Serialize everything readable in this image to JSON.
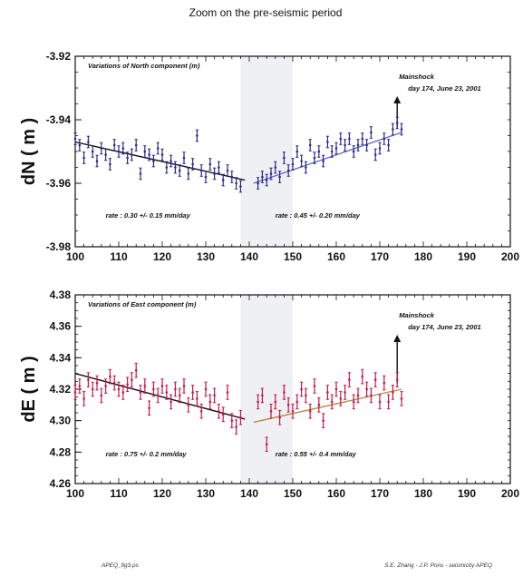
{
  "figure": {
    "subtitle": "Zoom on the pre-seismic period",
    "footer_left": "APEQ_fig3.ps",
    "footer_right": "S.E. Zhang - J.P. Pons - seismicity APEQ"
  },
  "chart_data": [
    {
      "type": "scatter",
      "panel_title": "Variations of North component (m)",
      "ylabel": "dN ( m )",
      "xlim": [
        100,
        200
      ],
      "ylim": [
        -3.98,
        -3.92
      ],
      "xticks": [
        100,
        110,
        120,
        130,
        140,
        150,
        160,
        170,
        180,
        190,
        200
      ],
      "yticks": [
        -3.92,
        -3.94,
        -3.96,
        -3.98
      ],
      "ytick_labels": [
        "-3.92",
        "-3.94",
        "-3.96",
        "-3.98"
      ],
      "shaded_x": [
        138,
        150
      ],
      "colors": {
        "points": "#2a2a8c",
        "trend_pre": "#111111",
        "trend_post": "#6a6ad0"
      },
      "mainshock": {
        "label": "Mainshock",
        "detail": "day 174, June 23, 2001",
        "x": 174
      },
      "rate_pre": "rate : 0.30 +/- 0.15 mm/day",
      "rate_post": "rate : 0.45 +/- 0.20 mm/day",
      "trend_pre": [
        [
          100,
          -3.947
        ],
        [
          139,
          -3.959
        ]
      ],
      "trend_post": [
        [
          141,
          -3.96
        ],
        [
          175,
          -3.944
        ]
      ],
      "x": [
        100,
        101,
        102,
        103,
        104,
        105,
        106,
        107,
        108,
        109,
        110,
        111,
        112,
        113,
        114,
        115,
        116,
        117,
        118,
        119,
        120,
        121,
        122,
        123,
        124,
        125,
        126,
        127,
        128,
        129,
        130,
        131,
        132,
        133,
        134,
        135,
        136,
        137,
        138,
        142,
        143,
        144,
        145,
        146,
        147,
        148,
        149,
        150,
        151,
        152,
        153,
        154,
        155,
        156,
        157,
        158,
        159,
        160,
        161,
        162,
        163,
        164,
        165,
        166,
        167,
        168,
        169,
        170,
        171,
        172,
        173,
        174,
        175
      ],
      "y": [
        -3.946,
        -3.948,
        -3.952,
        -3.947,
        -3.95,
        -3.953,
        -3.949,
        -3.951,
        -3.954,
        -3.948,
        -3.95,
        -3.949,
        -3.952,
        -3.951,
        -3.948,
        -3.957,
        -3.95,
        -3.951,
        -3.953,
        -3.949,
        -3.951,
        -3.955,
        -3.953,
        -3.955,
        -3.956,
        -3.952,
        -3.957,
        -3.954,
        -3.945,
        -3.956,
        -3.958,
        -3.954,
        -3.957,
        -3.955,
        -3.959,
        -3.956,
        -3.958,
        -3.96,
        -3.961,
        -3.96,
        -3.958,
        -3.959,
        -3.957,
        -3.955,
        -3.958,
        -3.952,
        -3.956,
        -3.954,
        -3.95,
        -3.953,
        -3.955,
        -3.948,
        -3.952,
        -3.95,
        -3.953,
        -3.947,
        -3.95,
        -3.949,
        -3.946,
        -3.948,
        -3.946,
        -3.95,
        -3.948,
        -3.946,
        -3.948,
        -3.944,
        -3.951,
        -3.949,
        -3.946,
        -3.948,
        -3.943,
        -3.941,
        -3.943
      ],
      "err": 0.0018
    },
    {
      "type": "scatter",
      "panel_title": "Variations of East component (m)",
      "ylabel": "dE ( m )",
      "xlim": [
        100,
        200
      ],
      "ylim": [
        4.26,
        4.38
      ],
      "xticks": [
        100,
        110,
        120,
        130,
        140,
        150,
        160,
        170,
        180,
        190,
        200
      ],
      "yticks": [
        4.38,
        4.36,
        4.34,
        4.32,
        4.3,
        4.28,
        4.26
      ],
      "ytick_labels": [
        "4.38",
        "4.36",
        "4.34",
        "4.32",
        "4.30",
        "4.28",
        "4.26"
      ],
      "shaded_x": [
        138,
        150
      ],
      "colors": {
        "points": "#c8184a",
        "trend_pre": "#111111",
        "trend_post": "#b98a4a"
      },
      "mainshock": {
        "label": "Mainshock",
        "detail": "day 174, June 23, 2001",
        "x": 174
      },
      "rate_pre": "rate : 0.75 +/- 0.2 mm/day",
      "rate_post": "rate : 0.55 +/- 0.4 mm/day",
      "trend_pre": [
        [
          100,
          4.33
        ],
        [
          139,
          4.301
        ]
      ],
      "trend_post": [
        [
          141,
          4.299
        ],
        [
          175,
          4.32
        ]
      ],
      "x": [
        100,
        101,
        102,
        103,
        104,
        105,
        106,
        107,
        108,
        109,
        110,
        111,
        112,
        113,
        114,
        115,
        116,
        117,
        118,
        119,
        120,
        121,
        122,
        123,
        124,
        125,
        126,
        127,
        128,
        129,
        130,
        131,
        132,
        133,
        134,
        135,
        136,
        137,
        138,
        142,
        143,
        144,
        145,
        146,
        147,
        148,
        149,
        150,
        151,
        152,
        153,
        154,
        155,
        156,
        157,
        158,
        159,
        160,
        161,
        162,
        163,
        164,
        165,
        166,
        167,
        168,
        169,
        170,
        171,
        172,
        173,
        174,
        175
      ],
      "y": [
        4.318,
        4.322,
        4.314,
        4.326,
        4.32,
        4.324,
        4.316,
        4.322,
        4.328,
        4.324,
        4.32,
        4.318,
        4.323,
        4.326,
        4.332,
        4.318,
        4.322,
        4.308,
        4.32,
        4.316,
        4.322,
        4.318,
        4.312,
        4.32,
        4.316,
        4.322,
        4.31,
        4.318,
        4.314,
        4.306,
        4.32,
        4.312,
        4.316,
        4.306,
        4.304,
        4.318,
        4.3,
        4.296,
        4.302,
        4.312,
        4.316,
        4.285,
        4.306,
        4.312,
        4.302,
        4.318,
        4.31,
        4.306,
        4.312,
        4.32,
        4.316,
        4.306,
        4.322,
        4.31,
        4.3,
        4.318,
        4.312,
        4.32,
        4.314,
        4.318,
        4.326,
        4.312,
        4.316,
        4.328,
        4.32,
        4.316,
        4.326,
        4.312,
        4.324,
        4.312,
        4.318,
        4.326,
        4.314
      ],
      "err": 0.0045
    }
  ]
}
